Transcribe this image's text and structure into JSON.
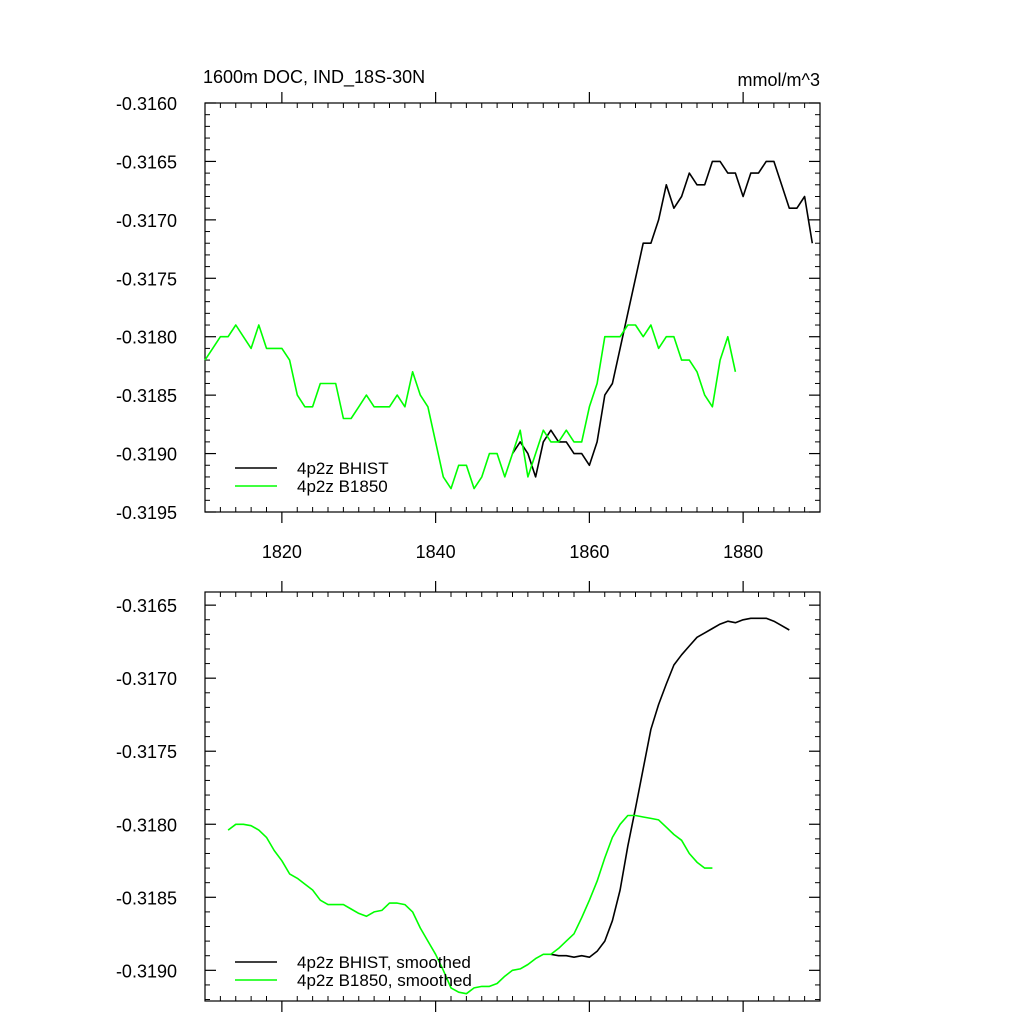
{
  "chart_data": [
    {
      "type": "line",
      "title": "1600m DOC, IND_18S-30N",
      "units": "mmol/m^3",
      "xlabel": "",
      "ylabel": "",
      "xlim": [
        1810,
        1890
      ],
      "ylim": [
        -0.3195,
        -0.316
      ],
      "x_ticks": [
        1820,
        1840,
        1860,
        1880
      ],
      "x_tick_labels": [
        "1820",
        "1840",
        "1860",
        "1880"
      ],
      "y_ticks": [
        -0.316,
        -0.3165,
        -0.317,
        -0.3175,
        -0.318,
        -0.3185,
        -0.319,
        -0.3195
      ],
      "y_tick_labels": [
        "-0.3160",
        "-0.3165",
        "-0.3170",
        "-0.3175",
        "-0.3180",
        "-0.3185",
        "-0.3190",
        "-0.3195"
      ],
      "grid": false,
      "legend_position": "bottom-left",
      "series": [
        {
          "name": "4p2z BHIST",
          "color": "#000000",
          "x": [
            1850,
            1851,
            1852,
            1853,
            1854,
            1855,
            1856,
            1857,
            1858,
            1859,
            1860,
            1861,
            1862,
            1863,
            1864,
            1865,
            1866,
            1867,
            1868,
            1869,
            1870,
            1871,
            1872,
            1873,
            1874,
            1875,
            1876,
            1877,
            1878,
            1879,
            1880,
            1881,
            1882,
            1883,
            1884,
            1885,
            1886,
            1887,
            1888,
            1889
          ],
          "values": [
            -0.319,
            -0.3189,
            -0.319,
            -0.3192,
            -0.3189,
            -0.3188,
            -0.3189,
            -0.3189,
            -0.319,
            -0.319,
            -0.3191,
            -0.3189,
            -0.3185,
            -0.3184,
            -0.3181,
            -0.3178,
            -0.3175,
            -0.3172,
            -0.3172,
            -0.317,
            -0.3167,
            -0.3169,
            -0.3168,
            -0.3166,
            -0.3167,
            -0.3167,
            -0.3165,
            -0.3165,
            -0.3166,
            -0.3166,
            -0.3168,
            -0.3166,
            -0.3166,
            -0.3165,
            -0.3165,
            -0.3167,
            -0.3169,
            -0.3169,
            -0.3168,
            -0.3172
          ]
        },
        {
          "name": "4p2z B1850",
          "color": "#00ff00",
          "x": [
            1810,
            1811,
            1812,
            1813,
            1814,
            1815,
            1816,
            1817,
            1818,
            1819,
            1820,
            1821,
            1822,
            1823,
            1824,
            1825,
            1826,
            1827,
            1828,
            1829,
            1830,
            1831,
            1832,
            1833,
            1834,
            1835,
            1836,
            1837,
            1838,
            1839,
            1840,
            1841,
            1842,
            1843,
            1844,
            1845,
            1846,
            1847,
            1848,
            1849,
            1850,
            1851,
            1852,
            1853,
            1854,
            1855,
            1856,
            1857,
            1858,
            1859,
            1860,
            1861,
            1862,
            1863,
            1864,
            1865,
            1866,
            1867,
            1868,
            1869,
            1870,
            1871,
            1872,
            1873,
            1874,
            1875,
            1876,
            1877,
            1878,
            1879
          ],
          "values": [
            -0.3182,
            -0.3181,
            -0.318,
            -0.318,
            -0.3179,
            -0.318,
            -0.3181,
            -0.3179,
            -0.3181,
            -0.3181,
            -0.3181,
            -0.3182,
            -0.3185,
            -0.3186,
            -0.3186,
            -0.3184,
            -0.3184,
            -0.3184,
            -0.3187,
            -0.3187,
            -0.3186,
            -0.3185,
            -0.3186,
            -0.3186,
            -0.3186,
            -0.3185,
            -0.3186,
            -0.3183,
            -0.3185,
            -0.3186,
            -0.3189,
            -0.3192,
            -0.3193,
            -0.3191,
            -0.3191,
            -0.3193,
            -0.3192,
            -0.319,
            -0.319,
            -0.3192,
            -0.319,
            -0.3188,
            -0.3192,
            -0.319,
            -0.3188,
            -0.3189,
            -0.3189,
            -0.3188,
            -0.3189,
            -0.3189,
            -0.3186,
            -0.3184,
            -0.318,
            -0.318,
            -0.318,
            -0.3179,
            -0.3179,
            -0.318,
            -0.3179,
            -0.3181,
            -0.318,
            -0.318,
            -0.3182,
            -0.3182,
            -0.3183,
            -0.3185,
            -0.3186,
            -0.3182,
            -0.318,
            -0.3183
          ]
        }
      ]
    },
    {
      "type": "line",
      "title": "",
      "xlabel": "",
      "ylabel": "",
      "xlim": [
        1810,
        1890
      ],
      "ylim": [
        -0.31921,
        -0.31641
      ],
      "x_ticks": [
        1820,
        1840,
        1860,
        1880
      ],
      "x_tick_labels": [],
      "y_ticks": [
        -0.3165,
        -0.317,
        -0.3175,
        -0.318,
        -0.3185,
        -0.319
      ],
      "y_tick_labels": [
        "-0.3165",
        "-0.3170",
        "-0.3175",
        "-0.3180",
        "-0.3185",
        "-0.3190"
      ],
      "grid": false,
      "legend_position": "bottom-left",
      "series": [
        {
          "name": "4p2z BHIST, smoothed",
          "color": "#000000",
          "x": [
            1855,
            1856,
            1857,
            1858,
            1859,
            1860,
            1861,
            1862,
            1863,
            1864,
            1865,
            1866,
            1867,
            1868,
            1869,
            1870,
            1871,
            1872,
            1873,
            1874,
            1875,
            1876,
            1877,
            1878,
            1879,
            1880,
            1881,
            1882,
            1883,
            1884,
            1885,
            1886
          ],
          "values": [
            -0.31889,
            -0.3189,
            -0.3189,
            -0.31891,
            -0.3189,
            -0.31891,
            -0.31887,
            -0.3188,
            -0.31866,
            -0.31845,
            -0.31815,
            -0.31789,
            -0.31762,
            -0.31735,
            -0.31718,
            -0.31704,
            -0.31691,
            -0.31684,
            -0.31678,
            -0.31672,
            -0.31669,
            -0.31666,
            -0.31663,
            -0.31661,
            -0.31662,
            -0.3166,
            -0.31659,
            -0.31659,
            -0.31659,
            -0.31661,
            -0.31664,
            -0.31667
          ]
        },
        {
          "name": "4p2z B1850, smoothed",
          "color": "#00ff00",
          "x": [
            1813,
            1814,
            1815,
            1816,
            1817,
            1818,
            1819,
            1820,
            1821,
            1822,
            1823,
            1824,
            1825,
            1826,
            1827,
            1828,
            1829,
            1830,
            1831,
            1832,
            1833,
            1834,
            1835,
            1836,
            1837,
            1838,
            1839,
            1840,
            1841,
            1842,
            1843,
            1844,
            1845,
            1846,
            1847,
            1848,
            1849,
            1850,
            1851,
            1852,
            1853,
            1854,
            1855,
            1856,
            1857,
            1858,
            1859,
            1860,
            1861,
            1862,
            1863,
            1864,
            1865,
            1866,
            1867,
            1868,
            1869,
            1870,
            1871,
            1872,
            1873,
            1874,
            1875,
            1876
          ],
          "values": [
            -0.31804,
            -0.318,
            -0.318,
            -0.31801,
            -0.31804,
            -0.31809,
            -0.31818,
            -0.31825,
            -0.31834,
            -0.31837,
            -0.31841,
            -0.31845,
            -0.31852,
            -0.31855,
            -0.31855,
            -0.31855,
            -0.31858,
            -0.31861,
            -0.31863,
            -0.3186,
            -0.31859,
            -0.31854,
            -0.31854,
            -0.31855,
            -0.3186,
            -0.31871,
            -0.3188,
            -0.31889,
            -0.319,
            -0.31912,
            -0.31915,
            -0.31916,
            -0.31912,
            -0.31911,
            -0.31911,
            -0.31909,
            -0.31904,
            -0.319,
            -0.31899,
            -0.31896,
            -0.31892,
            -0.31889,
            -0.31889,
            -0.31885,
            -0.3188,
            -0.31875,
            -0.31864,
            -0.31852,
            -0.31839,
            -0.31823,
            -0.31809,
            -0.318,
            -0.31794,
            -0.31794,
            -0.31795,
            -0.31796,
            -0.31797,
            -0.31802,
            -0.31807,
            -0.31811,
            -0.3182,
            -0.31826,
            -0.3183,
            -0.3183
          ]
        }
      ]
    }
  ]
}
